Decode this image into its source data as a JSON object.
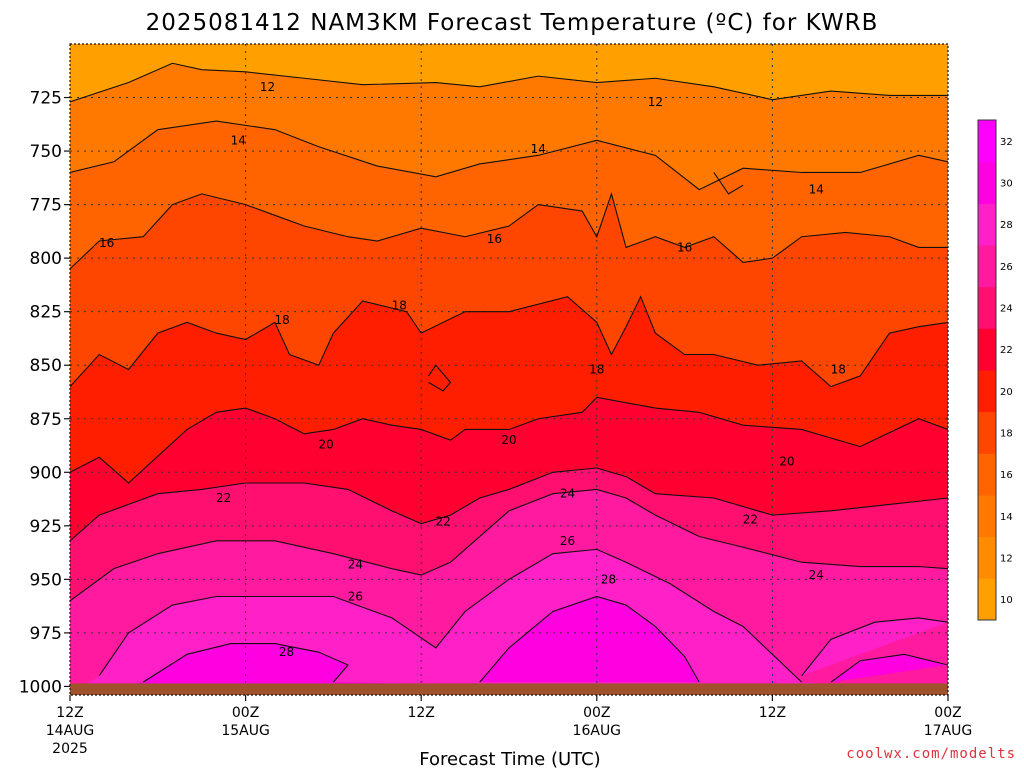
{
  "chart_data": {
    "type": "heatmap",
    "title": "2025081412 NAM3KM Forecast Temperature (ºC) for KWRB",
    "xlabel": "Forecast Time (UTC)",
    "ylabel": "",
    "x_ticks": [
      {
        "hour": 0,
        "label": "12Z",
        "sub1": "14AUG",
        "sub2": "2025"
      },
      {
        "hour": 12,
        "label": "00Z",
        "sub1": "15AUG",
        "sub2": ""
      },
      {
        "hour": 24,
        "label": "12Z",
        "sub1": "",
        "sub2": ""
      },
      {
        "hour": 36,
        "label": "00Z",
        "sub1": "16AUG",
        "sub2": ""
      },
      {
        "hour": 48,
        "label": "12Z",
        "sub1": "",
        "sub2": ""
      },
      {
        "hour": 60,
        "label": "00Z",
        "sub1": "17AUG",
        "sub2": ""
      }
    ],
    "xlim": [
      0,
      60
    ],
    "y_ticks": [
      725,
      750,
      775,
      800,
      825,
      850,
      875,
      900,
      925,
      950,
      975,
      1000
    ],
    "ylim": [
      1000,
      700
    ],
    "colorbar": {
      "ticks": [
        10,
        12,
        14,
        16,
        18,
        20,
        22,
        24,
        26,
        28,
        30,
        32
      ],
      "colors": [
        "#ffa000",
        "#ff8c00",
        "#ff7800",
        "#ff6400",
        "#ff4600",
        "#ff1e00",
        "#ff0030",
        "#ff1070",
        "#ff1aa0",
        "#ff20c8",
        "#ff00e0",
        "#ff00ff"
      ]
    },
    "contours": [
      {
        "level": 12,
        "label": "12",
        "points": [
          [
            0,
            727
          ],
          [
            4,
            718
          ],
          [
            7,
            709
          ],
          [
            9,
            712
          ],
          [
            12,
            713
          ],
          [
            16,
            716
          ],
          [
            20,
            719
          ],
          [
            25,
            718
          ],
          [
            28,
            720
          ],
          [
            32,
            715
          ],
          [
            36,
            718
          ],
          [
            40,
            716
          ],
          [
            44,
            720
          ],
          [
            48,
            726
          ],
          [
            52,
            722
          ],
          [
            56,
            724
          ],
          [
            60,
            724
          ]
        ],
        "label_positions": [
          [
            13.5,
            720
          ],
          [
            40,
            727
          ]
        ]
      },
      {
        "level": 14,
        "label": "14",
        "points": [
          [
            0,
            760
          ],
          [
            3,
            755
          ],
          [
            6,
            740
          ],
          [
            10,
            736
          ],
          [
            14,
            740
          ],
          [
            17,
            748
          ],
          [
            21,
            757
          ],
          [
            25,
            762
          ],
          [
            28,
            756
          ],
          [
            32,
            752
          ],
          [
            36,
            745
          ],
          [
            40,
            752
          ],
          [
            43,
            768
          ],
          [
            46,
            758
          ],
          [
            50,
            760
          ],
          [
            54,
            760
          ],
          [
            58,
            752
          ],
          [
            60,
            755
          ]
        ],
        "label_positions": [
          [
            11.5,
            745
          ],
          [
            32,
            749
          ],
          [
            51,
            768
          ]
        ]
      },
      {
        "level": 14,
        "label": "",
        "points": [
          [
            44,
            760
          ],
          [
            45,
            770
          ],
          [
            46,
            766
          ]
        ],
        "label_positions": []
      },
      {
        "level": 16,
        "label": "16",
        "points": [
          [
            0,
            805
          ],
          [
            2,
            792
          ],
          [
            5,
            790
          ],
          [
            7,
            775
          ],
          [
            9,
            770
          ],
          [
            12,
            775
          ],
          [
            14,
            780
          ],
          [
            16,
            785
          ],
          [
            19,
            790
          ],
          [
            21,
            792
          ],
          [
            24,
            786
          ],
          [
            27,
            790
          ],
          [
            30,
            785
          ],
          [
            32,
            775
          ],
          [
            35,
            778
          ],
          [
            36,
            790
          ],
          [
            37,
            770
          ],
          [
            38,
            795
          ],
          [
            40,
            790
          ],
          [
            42,
            795
          ],
          [
            44,
            790
          ],
          [
            46,
            802
          ],
          [
            48,
            800
          ],
          [
            50,
            790
          ],
          [
            53,
            788
          ],
          [
            56,
            790
          ],
          [
            58,
            795
          ],
          [
            60,
            795
          ]
        ],
        "label_positions": [
          [
            2.5,
            793
          ],
          [
            29,
            791
          ],
          [
            42,
            795
          ]
        ]
      },
      {
        "level": 18,
        "label": "18",
        "points": [
          [
            0,
            860
          ],
          [
            2,
            845
          ],
          [
            4,
            852
          ],
          [
            6,
            835
          ],
          [
            8,
            830
          ],
          [
            10,
            835
          ],
          [
            12,
            838
          ],
          [
            14,
            830
          ],
          [
            15,
            845
          ],
          [
            17,
            850
          ],
          [
            18,
            835
          ],
          [
            20,
            820
          ],
          [
            23,
            825
          ],
          [
            24,
            835
          ],
          [
            27,
            825
          ],
          [
            30,
            825
          ],
          [
            34,
            818
          ],
          [
            36,
            830
          ],
          [
            37,
            845
          ],
          [
            38,
            832
          ],
          [
            39,
            818
          ],
          [
            40,
            835
          ],
          [
            42,
            845
          ],
          [
            44,
            845
          ],
          [
            47,
            850
          ],
          [
            50,
            848
          ],
          [
            52,
            860
          ],
          [
            54,
            855
          ],
          [
            56,
            835
          ],
          [
            58,
            832
          ],
          [
            60,
            830
          ]
        ],
        "label_positions": [
          [
            14.5,
            829
          ],
          [
            22.5,
            822
          ],
          [
            36,
            852
          ],
          [
            52.5,
            852
          ]
        ]
      },
      {
        "level": 20,
        "label": "20",
        "points": [
          [
            0,
            900
          ],
          [
            2,
            893
          ],
          [
            4,
            905
          ],
          [
            8,
            880
          ],
          [
            10,
            872
          ],
          [
            12,
            870
          ],
          [
            14,
            875
          ],
          [
            16,
            882
          ],
          [
            18,
            880
          ],
          [
            20,
            875
          ],
          [
            22,
            878
          ],
          [
            24,
            880
          ],
          [
            26,
            885
          ],
          [
            27,
            880
          ],
          [
            30,
            880
          ],
          [
            32,
            875
          ],
          [
            35,
            872
          ],
          [
            36,
            865
          ],
          [
            40,
            870
          ],
          [
            43,
            872
          ],
          [
            46,
            878
          ],
          [
            50,
            880
          ],
          [
            54,
            888
          ],
          [
            58,
            875
          ],
          [
            60,
            880
          ]
        ],
        "label_positions": [
          [
            17.5,
            887
          ],
          [
            30,
            885
          ],
          [
            49,
            895
          ]
        ]
      },
      {
        "level": 20,
        "label": "",
        "points": [
          [
            24.5,
            855
          ],
          [
            25,
            850
          ],
          [
            26,
            858
          ],
          [
            25.5,
            862
          ],
          [
            24.5,
            858
          ]
        ],
        "label_positions": []
      },
      {
        "level": 22,
        "label": "22",
        "points": [
          [
            0,
            932
          ],
          [
            2,
            920
          ],
          [
            4,
            915
          ],
          [
            6,
            910
          ],
          [
            9,
            908
          ],
          [
            12,
            905
          ],
          [
            16,
            905
          ],
          [
            19,
            908
          ],
          [
            22,
            918
          ],
          [
            24,
            924
          ],
          [
            26,
            920
          ],
          [
            28,
            912
          ],
          [
            30,
            908
          ],
          [
            33,
            900
          ],
          [
            36,
            898
          ],
          [
            38,
            902
          ],
          [
            40,
            910
          ],
          [
            44,
            912
          ],
          [
            48,
            920
          ],
          [
            52,
            918
          ],
          [
            56,
            915
          ],
          [
            60,
            912
          ]
        ],
        "label_positions": [
          [
            10.5,
            912
          ],
          [
            25.5,
            923
          ],
          [
            46.5,
            922
          ]
        ]
      },
      {
        "level": 24,
        "label": "24",
        "points": [
          [
            0,
            960
          ],
          [
            3,
            945
          ],
          [
            6,
            938
          ],
          [
            10,
            932
          ],
          [
            14,
            932
          ],
          [
            18,
            938
          ],
          [
            22,
            945
          ],
          [
            24,
            948
          ],
          [
            26,
            942
          ],
          [
            28,
            930
          ],
          [
            30,
            918
          ],
          [
            33,
            910
          ],
          [
            36,
            908
          ],
          [
            38,
            912
          ],
          [
            40,
            920
          ],
          [
            43,
            930
          ],
          [
            46,
            935
          ],
          [
            50,
            942
          ],
          [
            54,
            944
          ],
          [
            58,
            944
          ],
          [
            60,
            945
          ]
        ],
        "label_positions": [
          [
            19.5,
            943
          ],
          [
            34,
            910
          ],
          [
            51,
            948
          ]
        ]
      },
      {
        "level": 26,
        "label": "26",
        "points": [
          [
            2,
            995
          ],
          [
            4,
            975
          ],
          [
            7,
            962
          ],
          [
            10,
            958
          ],
          [
            14,
            958
          ],
          [
            18,
            958
          ],
          [
            22,
            968
          ],
          [
            25,
            982
          ],
          [
            27,
            965
          ],
          [
            30,
            950
          ],
          [
            33,
            938
          ],
          [
            36,
            936
          ],
          [
            38,
            942
          ],
          [
            41,
            952
          ],
          [
            44,
            965
          ],
          [
            46,
            972
          ],
          [
            48,
            985
          ],
          [
            50,
            998
          ]
        ],
        "label_positions": [
          [
            19.5,
            958
          ],
          [
            34,
            932
          ]
        ]
      },
      {
        "level": 26,
        "label": "",
        "points": [
          [
            50,
            995
          ],
          [
            52,
            978
          ],
          [
            55,
            970
          ],
          [
            58,
            968
          ],
          [
            60,
            970
          ]
        ],
        "label_positions": []
      },
      {
        "level": 28,
        "label": "28",
        "points": [
          [
            5,
            998
          ],
          [
            8,
            985
          ],
          [
            11,
            980
          ],
          [
            14,
            980
          ],
          [
            17,
            984
          ],
          [
            19,
            990
          ],
          [
            18,
            998
          ]
        ],
        "label_positions": [
          [
            14.8,
            984
          ]
        ]
      },
      {
        "level": 28,
        "label": "",
        "points": [
          [
            28,
            998
          ],
          [
            30,
            982
          ],
          [
            33,
            965
          ],
          [
            36,
            958
          ],
          [
            38,
            962
          ],
          [
            40,
            972
          ],
          [
            42,
            986
          ],
          [
            43,
            998
          ]
        ],
        "label_positions": [
          [
            36.8,
            950
          ]
        ]
      },
      {
        "level": 28,
        "label": "",
        "points": [
          [
            52,
            998
          ],
          [
            54,
            988
          ],
          [
            57,
            985
          ],
          [
            60,
            990
          ]
        ],
        "label_positions": []
      }
    ]
  },
  "credit": "coolwx.com/modelts"
}
